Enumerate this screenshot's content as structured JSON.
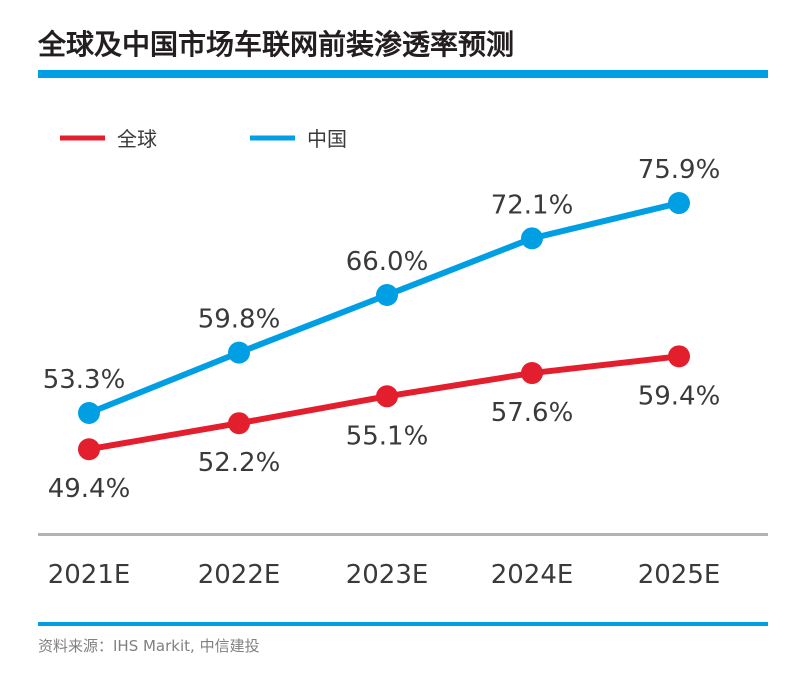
{
  "chart_data": {
    "type": "line",
    "title": "全球及中国市场车联网前装渗透率预测",
    "categories": [
      "2021E",
      "2022E",
      "2023E",
      "2024E",
      "2025E"
    ],
    "series": [
      {
        "name": "全球",
        "color": "#e31e2d",
        "values": [
          49.4,
          52.2,
          55.1,
          57.6,
          59.4
        ],
        "labels": [
          "49.4%",
          "52.2%",
          "55.1%",
          "57.6%",
          "59.4%"
        ]
      },
      {
        "name": "中国",
        "color": "#009fe3",
        "values": [
          53.3,
          59.8,
          66.0,
          72.1,
          75.9
        ],
        "labels": [
          "53.3%",
          "59.8%",
          "66.0%",
          "72.1%",
          "75.9%"
        ]
      }
    ],
    "legend": "top-left",
    "grid": false,
    "unit": "%"
  },
  "source": "资料来源：IHS Markit, 中信建投",
  "accent_color": "#009fe3"
}
